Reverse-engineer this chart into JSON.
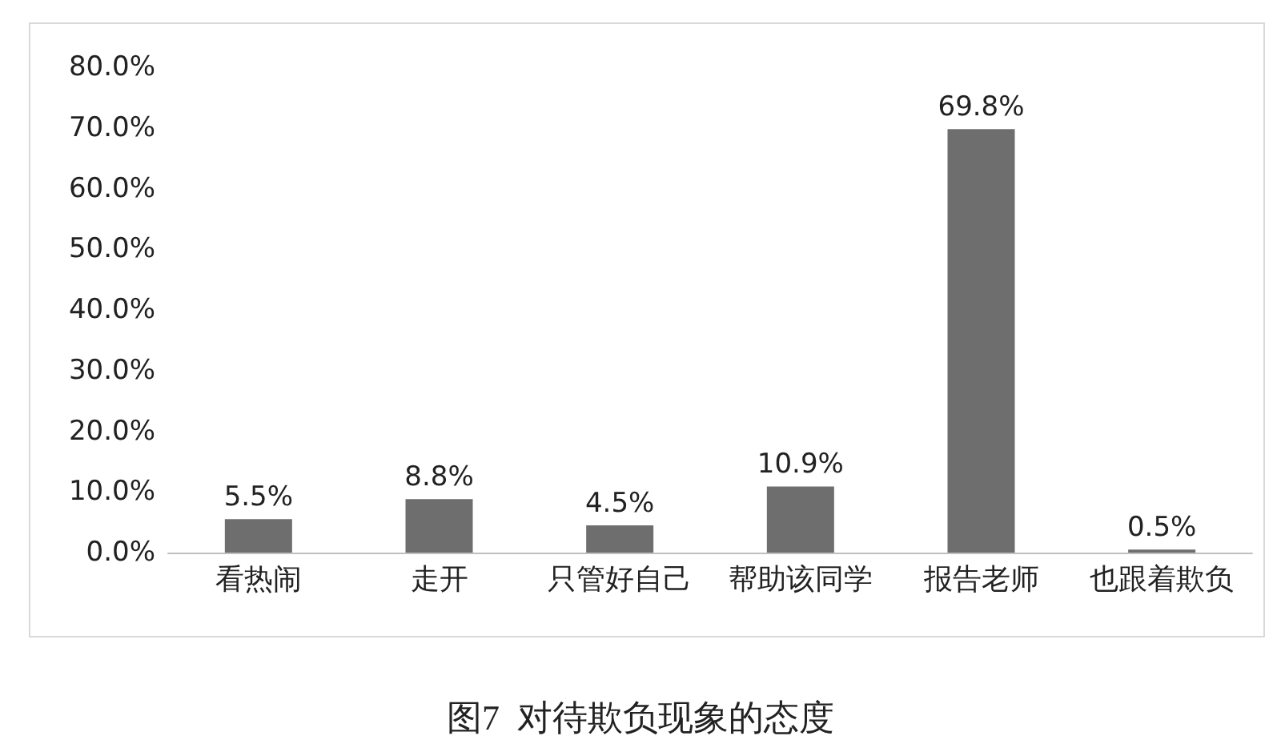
{
  "chart_data": {
    "type": "bar",
    "title": "图7  对待欺负现象的态度",
    "categories": [
      "看热闹",
      "走开",
      "只管好自己",
      "帮助该同学",
      "报告老师",
      "也跟着欺负"
    ],
    "values": [
      5.5,
      8.8,
      4.5,
      10.9,
      69.8,
      0.5
    ],
    "value_labels": [
      "5.5%",
      "8.8%",
      "4.5%",
      "10.9%",
      "69.8%",
      "0.5%"
    ],
    "color": "#6e6e6e",
    "ylim": [
      0,
      80
    ],
    "yticks": [
      {
        "value": 0,
        "label": "0.0%"
      },
      {
        "value": 10,
        "label": "10.0%"
      },
      {
        "value": 20,
        "label": "20.0%"
      },
      {
        "value": 30,
        "label": "30.0%"
      },
      {
        "value": 40,
        "label": "40.0%"
      },
      {
        "value": 50,
        "label": "50.0%"
      },
      {
        "value": 60,
        "label": "60.0%"
      },
      {
        "value": 70,
        "label": "70.0%"
      },
      {
        "value": 80,
        "label": "80.0%"
      }
    ],
    "grid": false
  }
}
